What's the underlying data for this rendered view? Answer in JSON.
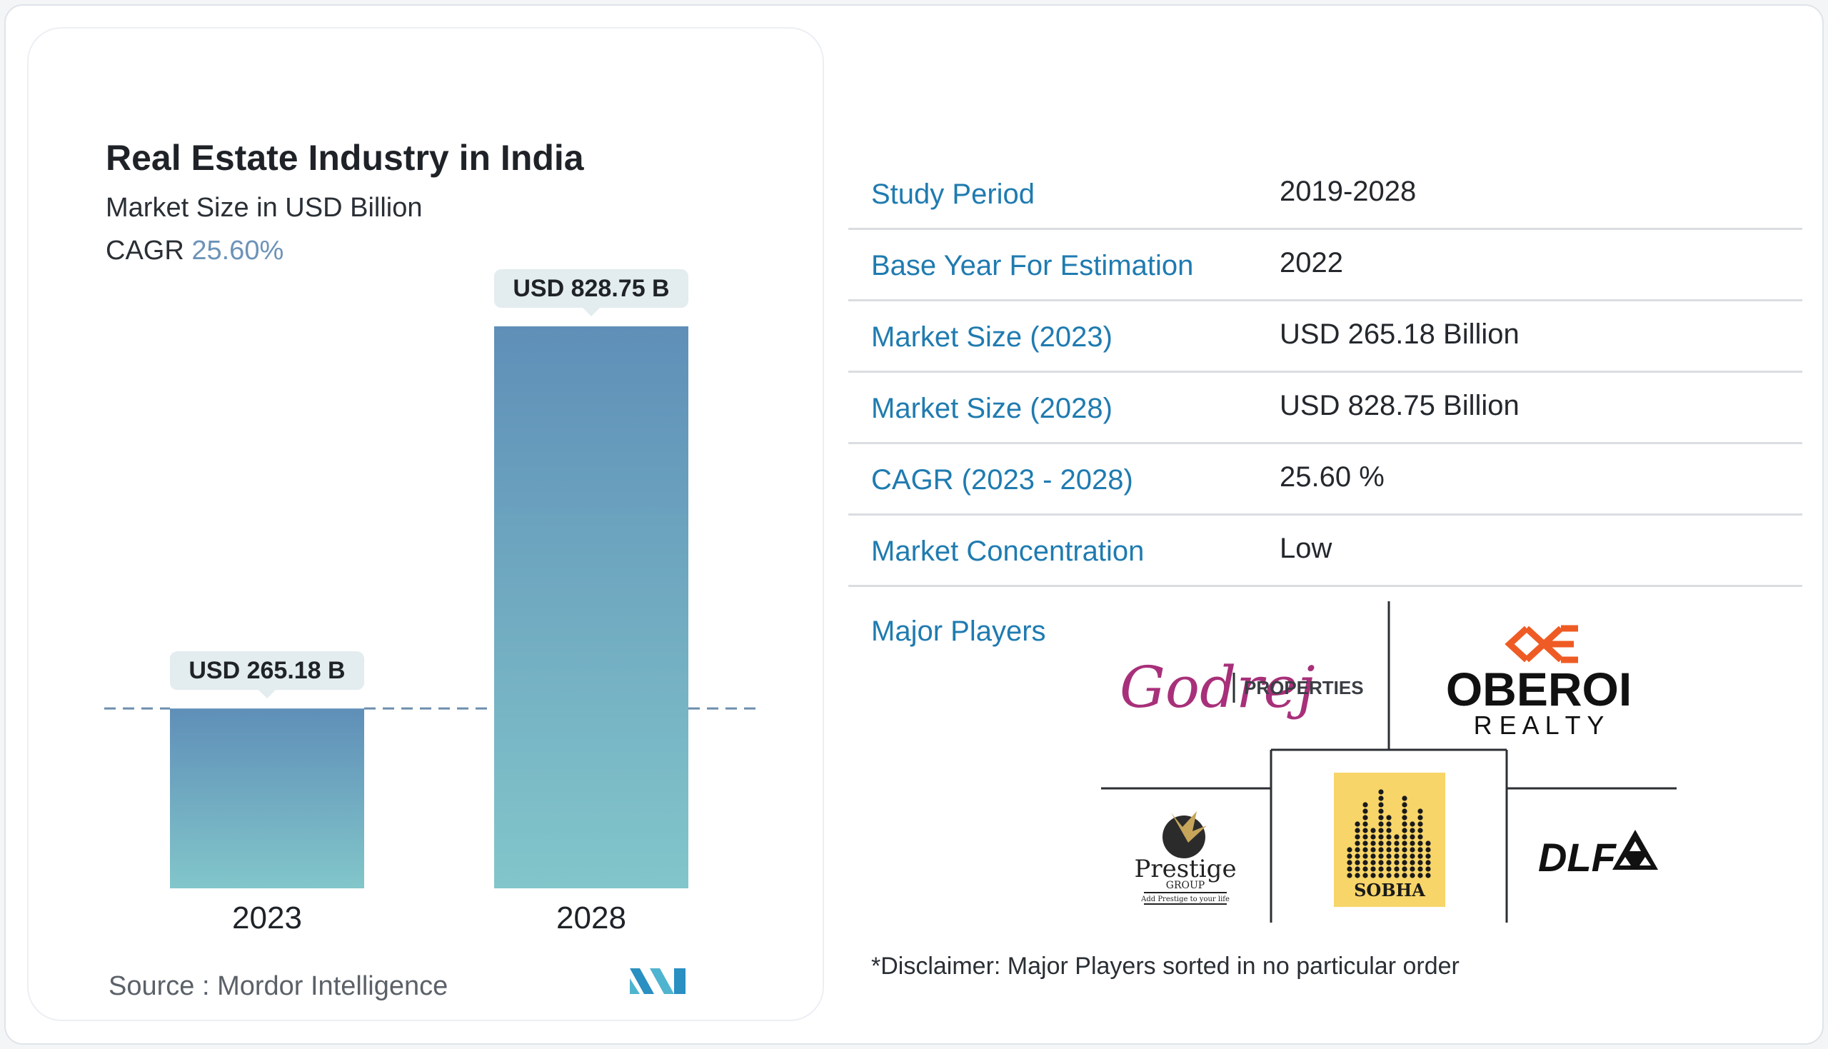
{
  "chart_data": {
    "type": "bar",
    "title": "Real Estate Industry in India",
    "subtitle": "Market Size in USD Billion",
    "cagr_label": "CAGR",
    "cagr_value": "25.60%",
    "categories": [
      "2023",
      "2028"
    ],
    "values": [
      265.18,
      828.75
    ],
    "data_labels": [
      "USD 265.18 B",
      "USD 828.75 B"
    ],
    "reference_line": 265.18,
    "ylim": [
      0,
      828.75
    ],
    "colors": {
      "bar_top": "#5f8fb8",
      "bar_bottom": "#82c6ca",
      "label_bg": "#e3ecee",
      "dashed_line": "#6d8fae"
    }
  },
  "source": "Source :  Mordor Intelligence",
  "table": [
    {
      "label": "Study Period",
      "value": "2019-2028"
    },
    {
      "label": "Base Year For Estimation",
      "value": "2022"
    },
    {
      "label": "Market Size (2023)",
      "value": "USD 265.18 Billion"
    },
    {
      "label": "Market Size (2028)",
      "value": "USD 828.75 Billion"
    },
    {
      "label": "CAGR (2023 - 2028)",
      "value": "25.60 %"
    },
    {
      "label": "Market Concentration",
      "value": "Low"
    }
  ],
  "major_players": {
    "heading": "Major Players",
    "logos": [
      {
        "name": "Godrej Properties",
        "text": "PROPERTIES",
        "script": "Godrej"
      },
      {
        "name": "Oberoi Realty",
        "line1": "OBEROI",
        "line2": "R E A L T Y"
      },
      {
        "name": "Prestige Group",
        "line1": "Prestige",
        "line2": "GROUP",
        "tagline": "Add Prestige to your life"
      },
      {
        "name": "Sobha",
        "text": "SOBHA"
      },
      {
        "name": "DLF",
        "text": "DLF"
      }
    ]
  },
  "disclaimer": "*Disclaimer: Major Players sorted in no particular order",
  "colors": {
    "accent": "#1f7bb0",
    "cagr": "#6c93b8"
  }
}
